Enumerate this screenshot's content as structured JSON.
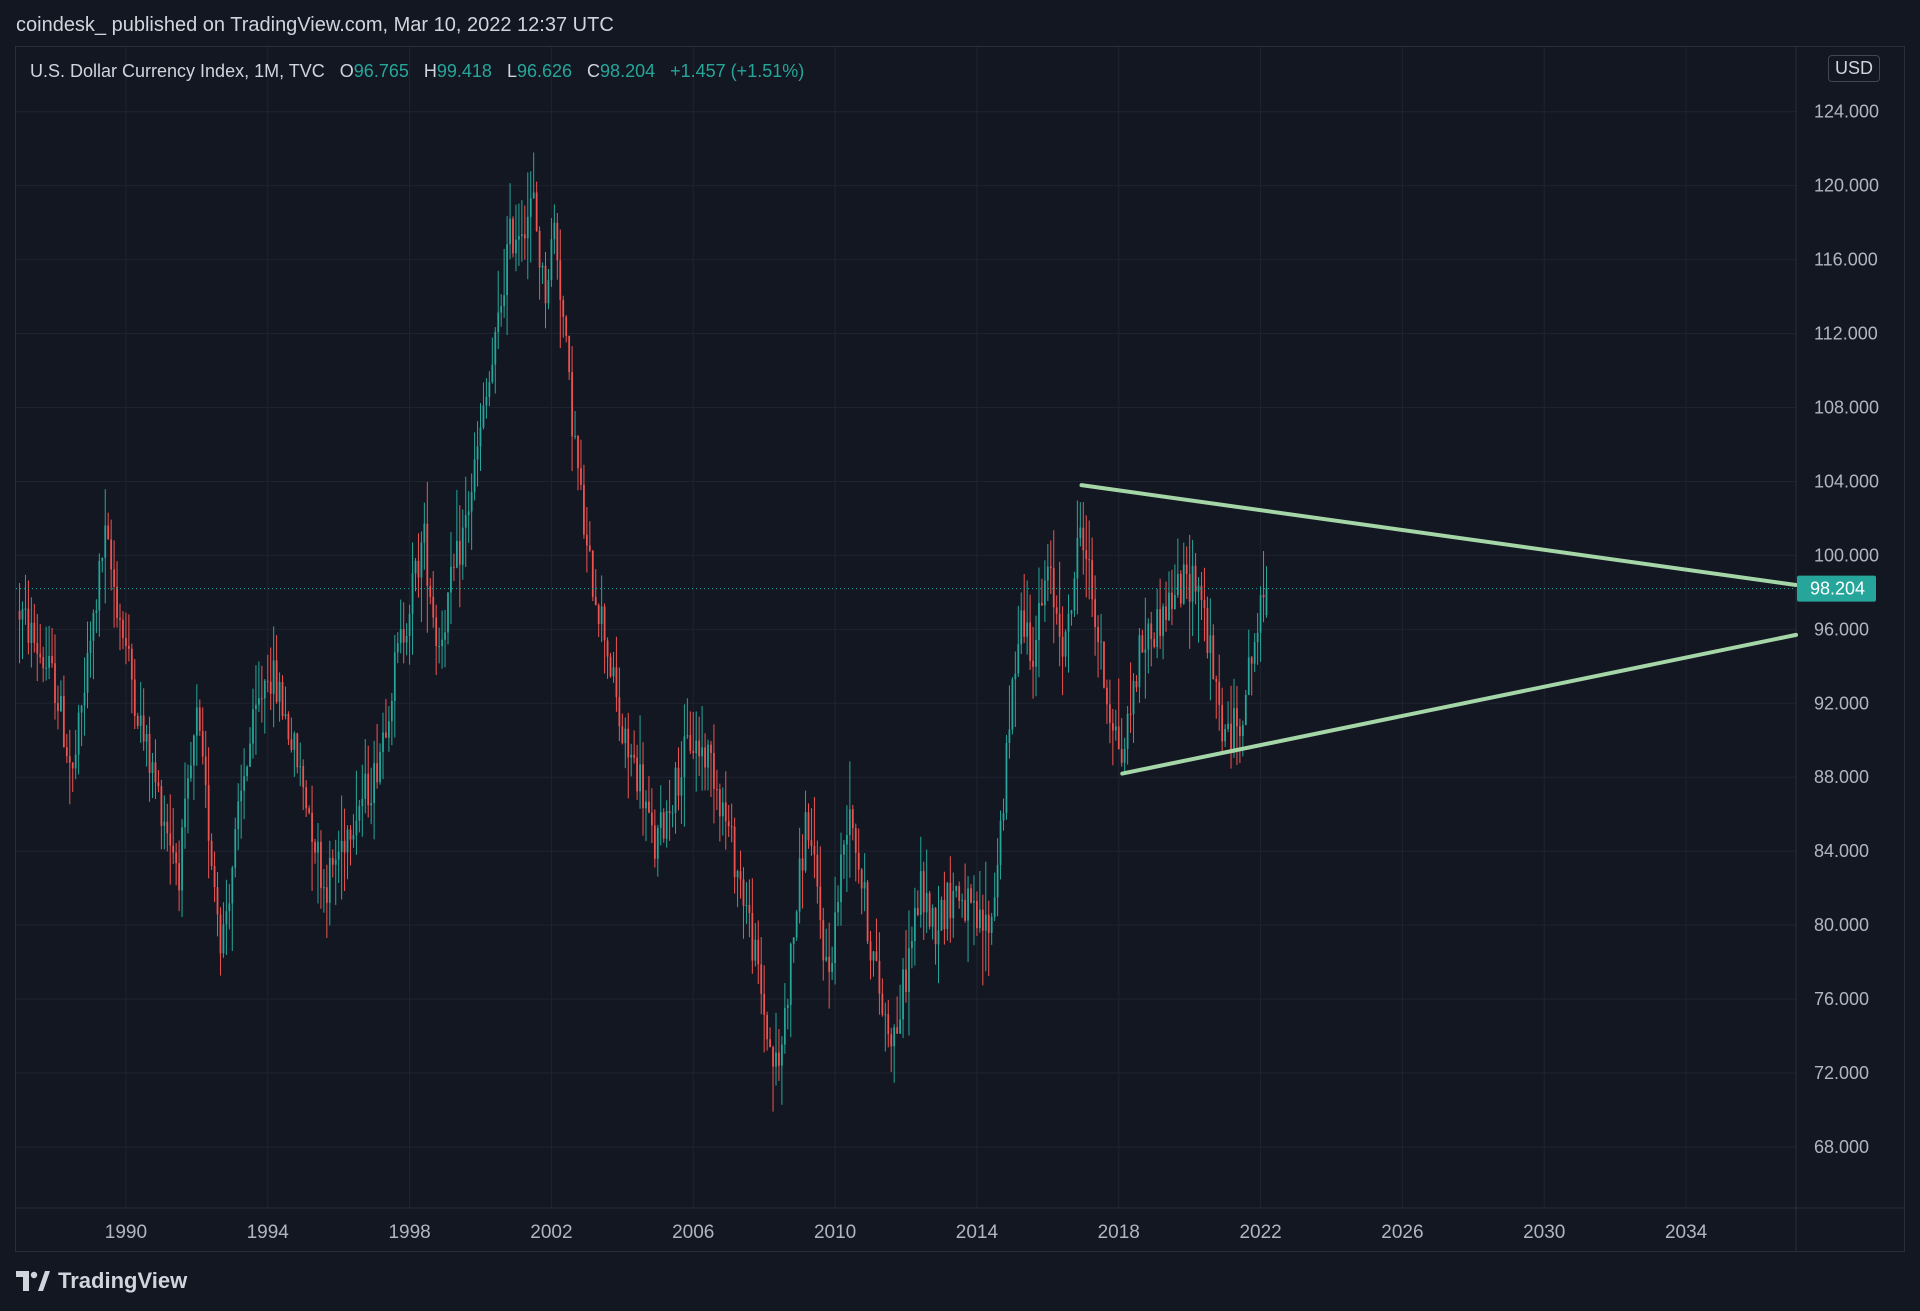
{
  "header": {
    "publisher_line": "coindesk_ published on TradingView.com, Mar 10, 2022 12:37 UTC"
  },
  "legend": {
    "symbol": "U.S. Dollar Currency Index, 1M, TVC",
    "open_label": "O",
    "open": "96.765",
    "high_label": "H",
    "high": "99.418",
    "low_label": "L",
    "low": "96.626",
    "close_label": "C",
    "close": "98.204",
    "change": "+1.457 (+1.51%)"
  },
  "currency": "USD",
  "footer": {
    "brand": "TradingView",
    "logo_icon": "tradingview-logo-icon"
  },
  "colors": {
    "background": "#131722",
    "up": "#26a69a",
    "down": "#ef5350",
    "trendline": "#a5d6a7",
    "grid": "#1f2330",
    "price_label_bg": "#26a69a"
  },
  "chart_data": {
    "type": "candlestick",
    "title": "",
    "interval": "1M",
    "x_ticks": [
      "1990",
      "1994",
      "1998",
      "2002",
      "2006",
      "2010",
      "2014",
      "2018",
      "2022",
      "2026",
      "2030",
      "2034"
    ],
    "y_ticks": [
      "124.000",
      "120.000",
      "116.000",
      "112.000",
      "108.000",
      "104.000",
      "100.000",
      "96.000",
      "92.000",
      "88.000",
      "84.000",
      "80.000",
      "76.000",
      "72.000",
      "68.000"
    ],
    "x_range": [
      1986.9,
      2037.1
    ],
    "y_range": [
      64.7,
      127.5
    ],
    "current_price": 98.204,
    "current_price_label": "98.204",
    "key_points": [
      [
        1987.0,
        97.0
      ],
      [
        1988.0,
        93.0
      ],
      [
        1988.5,
        88.0
      ],
      [
        1989.4,
        101.0
      ],
      [
        1989.8,
        97.0
      ],
      [
        1990.5,
        90.0
      ],
      [
        1991.5,
        83.0
      ],
      [
        1992.0,
        91.0
      ],
      [
        1992.7,
        79.0
      ],
      [
        1993.4,
        89.0
      ],
      [
        1994.0,
        94.0
      ],
      [
        1994.4,
        92.0
      ],
      [
        1995.2,
        86.0
      ],
      [
        1995.6,
        82.0
      ],
      [
        1996.4,
        86.0
      ],
      [
        1997.0,
        88.0
      ],
      [
        1997.6,
        94.0
      ],
      [
        1998.4,
        101.0
      ],
      [
        1998.8,
        95.0
      ],
      [
        1999.6,
        102.0
      ],
      [
        2000.4,
        111.0
      ],
      [
        2000.8,
        117.0
      ],
      [
        2001.5,
        119.0
      ],
      [
        2001.8,
        114.0
      ],
      [
        2002.1,
        118.0
      ],
      [
        2002.5,
        109.0
      ],
      [
        2003.0,
        100.0
      ],
      [
        2003.5,
        96.0
      ],
      [
        2004.0,
        90.0
      ],
      [
        2004.5,
        88.0
      ],
      [
        2004.9,
        84.0
      ],
      [
        2005.9,
        90.0
      ],
      [
        2006.5,
        89.0
      ],
      [
        2007.0,
        85.0
      ],
      [
        2007.5,
        81.0
      ],
      [
        2008.2,
        73.0
      ],
      [
        2008.4,
        72.0
      ],
      [
        2009.2,
        86.0
      ],
      [
        2009.8,
        77.0
      ],
      [
        2010.4,
        87.0
      ],
      [
        2011.0,
        79.0
      ],
      [
        2011.4,
        75.0
      ],
      [
        2011.7,
        74.0
      ],
      [
        2012.4,
        82.0
      ],
      [
        2012.8,
        80.0
      ],
      [
        2013.4,
        82.0
      ],
      [
        2014.0,
        80.0
      ],
      [
        2014.4,
        80.0
      ],
      [
        2014.8,
        88.0
      ],
      [
        2015.2,
        97.0
      ],
      [
        2015.6,
        95.0
      ],
      [
        2016.0,
        99.0
      ],
      [
        2016.5,
        95.0
      ],
      [
        2016.95,
        102.0
      ],
      [
        2017.6,
        93.0
      ],
      [
        2018.1,
        89.0
      ],
      [
        2018.6,
        95.0
      ],
      [
        2019.0,
        96.0
      ],
      [
        2019.6,
        98.0
      ],
      [
        2020.2,
        99.0
      ],
      [
        2020.4,
        97.0
      ],
      [
        2020.7,
        93.0
      ],
      [
        2021.0,
        90.0
      ],
      [
        2021.4,
        91.0
      ],
      [
        2021.8,
        95.0
      ],
      [
        2022.15,
        98.2
      ]
    ],
    "candles_generated": "monthly candles interpolated from key_points",
    "trendlines": [
      {
        "from": [
          2016.95,
          103.8
        ],
        "to": [
          2037.1,
          98.4
        ]
      },
      {
        "from": [
          2018.1,
          88.2
        ],
        "to": [
          2037.1,
          95.7
        ]
      }
    ],
    "grid": true
  }
}
